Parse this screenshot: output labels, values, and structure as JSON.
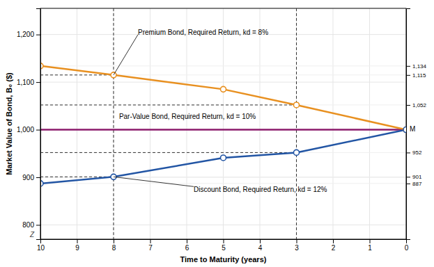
{
  "chart_data": {
    "type": "line",
    "xlabel": "Time to Maturity (years)",
    "ylabel": "Market Value of Bond, B₀ ($)",
    "xlim": [
      10,
      0
    ],
    "xticks": [
      10,
      9,
      8,
      7,
      6,
      5,
      4,
      3,
      2,
      1,
      0
    ],
    "ylim": [
      770,
      1255
    ],
    "yticks": [
      800,
      900,
      {
        "value": 1000,
        "label": "1,000"
      },
      {
        "value": 1100,
        "label": "1,100"
      },
      {
        "value": 1200,
        "label": "1,200"
      }
    ],
    "y2lim": [
      770,
      1255
    ],
    "y2ticks": [
      887,
      901,
      952,
      {
        "value": 1052,
        "label": "1,052"
      },
      {
        "value": 1115,
        "label": "1,115"
      },
      {
        "value": 1134,
        "label": "1,134"
      }
    ],
    "grid": true,
    "series": [
      {
        "x": [
          10,
          0
        ],
        "values": [
          1000,
          1000
        ],
        "color": "#8b1a6b",
        "marker": "none"
      },
      {
        "x": [
          10,
          8,
          5,
          3,
          0
        ],
        "values": [
          1134,
          1115,
          1085,
          1052,
          1000
        ],
        "color": "#e89020",
        "marker": "circle"
      },
      {
        "x": [
          10,
          8,
          5,
          3,
          0
        ],
        "values": [
          887,
          901,
          941,
          952,
          1000
        ],
        "color": "#2255a4",
        "marker": "circle"
      }
    ],
    "vlines": [
      8,
      3
    ],
    "hlines": [
      {
        "y": 1115,
        "x": [
          10,
          8
        ]
      },
      {
        "y": 1052,
        "x": [
          10,
          3
        ]
      },
      {
        "y": 901,
        "x": [
          10,
          8
        ]
      },
      {
        "y": 952,
        "x": [
          10,
          3
        ]
      }
    ],
    "annotations": [
      {
        "text": "Premium Bond, Required Return, kd = 8%",
        "x": 8,
        "y": 1115
      },
      {
        "text": "Par-Value Bond, Required Return, kd = 10%",
        "x": 7.85,
        "y": 1018
      },
      {
        "text": "Discount Bond, Required Return, kd = 12%",
        "x": 8,
        "y": 901
      },
      {
        "text": "M",
        "x": 0,
        "y": 1000
      },
      {
        "text": "Z"
      }
    ]
  }
}
